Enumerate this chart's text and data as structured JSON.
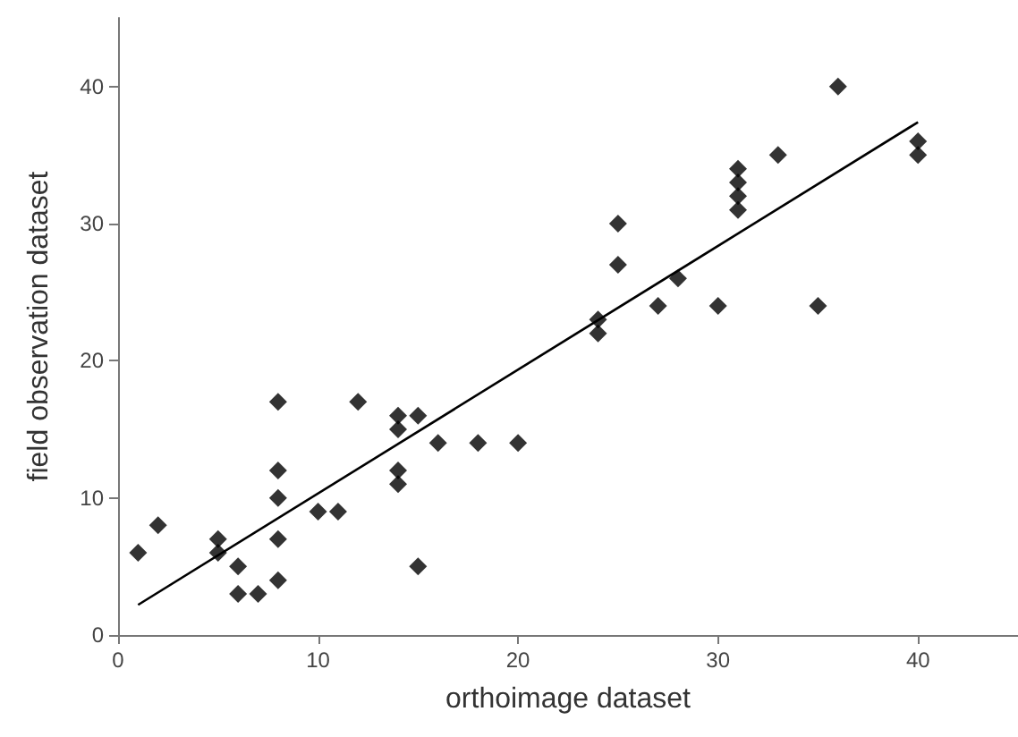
{
  "chart_data": {
    "type": "scatter",
    "xlabel": "orthoimage dataset",
    "ylabel": "field observation dataset",
    "grid": false,
    "xlim": [
      0,
      45
    ],
    "xticks": [
      0,
      10,
      20,
      30,
      40
    ],
    "ylim": [
      0,
      45
    ],
    "yticks": [
      0,
      10,
      20,
      30,
      40
    ],
    "series": [
      {
        "marker": "diamond",
        "color": "#000000",
        "x": [
          1,
          2,
          5,
          5,
          6,
          6,
          7,
          8,
          8,
          8,
          8,
          8,
          10,
          11,
          12,
          14,
          14,
          14,
          14,
          15,
          15,
          16,
          18,
          20,
          24,
          24,
          25,
          25,
          27,
          28,
          30,
          31,
          31,
          31,
          31,
          33,
          35,
          36,
          40,
          40
        ],
        "values": [
          6,
          8,
          7,
          6,
          5,
          3,
          3,
          17,
          12,
          10,
          7,
          4,
          9,
          9,
          17,
          16,
          15,
          12,
          11,
          16,
          5,
          14,
          14,
          14,
          23,
          22,
          30,
          27,
          24,
          26,
          24,
          34,
          33,
          32,
          31,
          35,
          24,
          40,
          36,
          35
        ]
      },
      {
        "type": "line",
        "color": "#000000",
        "x": [
          1,
          40
        ],
        "values": [
          2.2,
          37.4
        ]
      }
    ]
  }
}
